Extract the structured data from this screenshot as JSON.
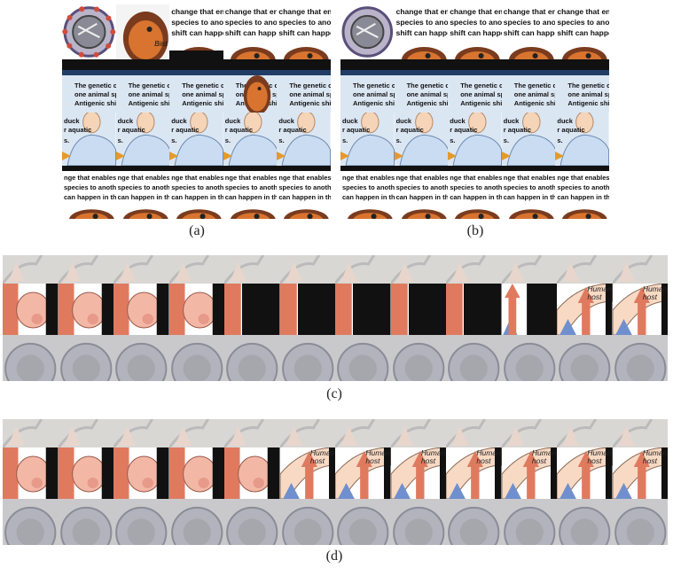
{
  "figure": {
    "captions": [
      "(a)",
      "(b)",
      "(c)",
      "(d)"
    ]
  },
  "slide_texts": {
    "line1": "change that enable",
    "line2": "species to another,",
    "line3": "shift can happen in",
    "genetic_1": "The genetic chan",
    "genetic_2": "one animal species",
    "genetic_3": "Antigenic shift c",
    "duck_1": "duck",
    "duck_2": "r aquatic",
    "duck_3": "s.",
    "bottom_1": "nge that enables a",
    "bottom_2": "species to another, in",
    "bottom_3": "can happen in three",
    "bird_label": "Bird",
    "human_host": "Human host"
  },
  "colors": {
    "arrow_orange": "#e07a5f",
    "arrow_blue": "#6f8fce",
    "pig_pink": "#f3b7a6",
    "sky": "#dbe6f3",
    "gray_bg": "#cfcfcf"
  }
}
